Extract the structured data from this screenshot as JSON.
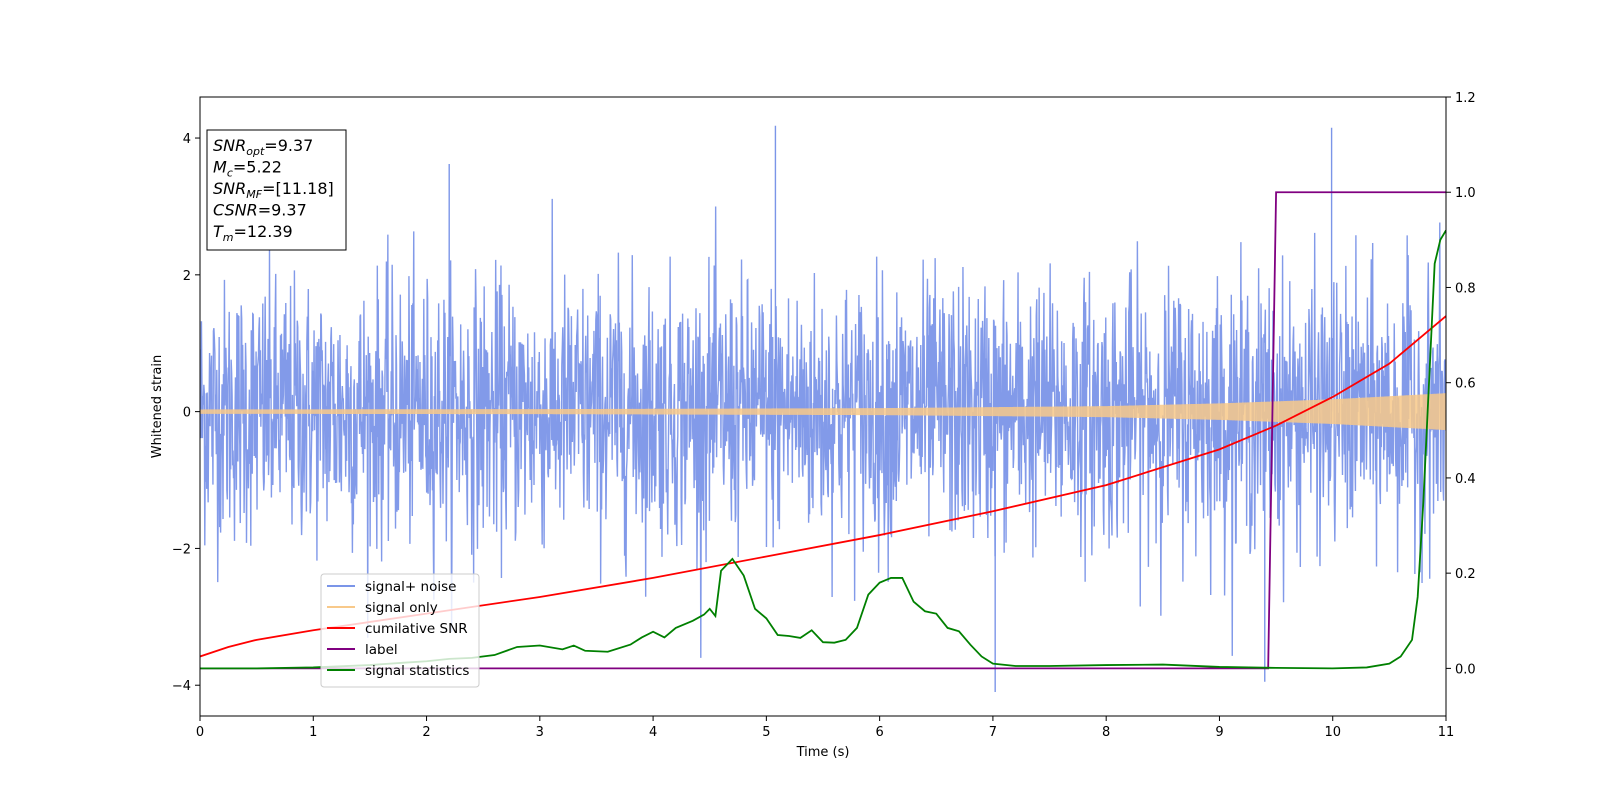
{
  "chart_data": {
    "type": "line",
    "title": "",
    "xlabel": "Time (s)",
    "ylabel": "Whitened strain",
    "xlim": [
      0,
      11
    ],
    "ylim": [
      -4.45,
      4.6
    ],
    "y2lim": [
      -0.1,
      1.2
    ],
    "xticks": [
      0,
      1,
      2,
      3,
      4,
      5,
      6,
      7,
      8,
      9,
      10,
      11
    ],
    "yticks": [
      -4,
      -2,
      0,
      2,
      4
    ],
    "y2ticks": [
      "0.0",
      "0.2",
      "0.4",
      "0.6",
      "0.8",
      "1.0",
      "1.2"
    ],
    "grid": false,
    "legend_position": "lower-left",
    "legend": [
      {
        "label": "signal+ noise",
        "color": "#7b95e8"
      },
      {
        "label": "signal only",
        "color": "#f8c98a"
      },
      {
        "label": "cumilative SNR",
        "color": "#ff0000"
      },
      {
        "label": "label",
        "color": "#800080"
      },
      {
        "label": "signal statistics",
        "color": "#008000"
      }
    ],
    "annotation_box": [
      {
        "name": "SNR",
        "sub": "opt",
        "value": "=9.37"
      },
      {
        "name": "M",
        "sub": "c",
        "value": "=5.22"
      },
      {
        "name": "SNR",
        "sub": "MF",
        "value": "=[11.18]"
      },
      {
        "name": "CSNR",
        "sub": "",
        "value": "=9.37"
      },
      {
        "name": "T",
        "sub": "m",
        "value": "=12.39"
      }
    ],
    "series": [
      {
        "name": "signal+ noise",
        "axis": "left",
        "description_samples_s": 11,
        "envelope_typical": [
          -2.0,
          2.0
        ],
        "extremes": {
          "max": 4.18,
          "min": -4.1
        },
        "color": "#7b95e8"
      },
      {
        "name": "signal only",
        "axis": "left",
        "amplitude_x": [
          0,
          3,
          6,
          8,
          9,
          10,
          11
        ],
        "amplitude_y": [
          0.03,
          0.035,
          0.05,
          0.08,
          0.12,
          0.18,
          0.27
        ],
        "color": "#f8c98a"
      },
      {
        "name": "cumilative SNR",
        "axis": "right",
        "x": [
          0,
          0.25,
          0.5,
          1,
          2,
          3,
          4,
          5,
          6,
          7,
          8,
          9,
          9.5,
          10,
          10.5,
          11
        ],
        "y": [
          0.025,
          0.045,
          0.06,
          0.08,
          0.115,
          0.15,
          0.19,
          0.235,
          0.28,
          0.33,
          0.385,
          0.46,
          0.51,
          0.57,
          0.64,
          0.74
        ],
        "color": "#ff0000"
      },
      {
        "name": "label",
        "axis": "right",
        "x": [
          0,
          9.43,
          9.5,
          11
        ],
        "y": [
          0,
          0,
          1,
          1
        ],
        "color": "#800080"
      },
      {
        "name": "signal statistics",
        "axis": "right",
        "x": [
          0,
          0.5,
          1,
          1.5,
          1.8,
          2.0,
          2.2,
          2.4,
          2.6,
          2.8,
          3.0,
          3.2,
          3.3,
          3.4,
          3.6,
          3.8,
          3.9,
          4.0,
          4.1,
          4.2,
          4.35,
          4.45,
          4.5,
          4.55,
          4.6,
          4.7,
          4.8,
          4.9,
          5.0,
          5.1,
          5.2,
          5.3,
          5.4,
          5.5,
          5.6,
          5.7,
          5.8,
          5.9,
          6.0,
          6.1,
          6.2,
          6.3,
          6.4,
          6.5,
          6.6,
          6.7,
          6.8,
          6.9,
          7.0,
          7.2,
          7.5,
          8.0,
          8.5,
          9.0,
          9.5,
          10.0,
          10.3,
          10.5,
          10.6,
          10.7,
          10.75,
          10.8,
          10.9,
          10.95,
          11.0
        ],
        "y": [
          0.0,
          0.0,
          0.002,
          0.007,
          0.012,
          0.015,
          0.02,
          0.022,
          0.028,
          0.045,
          0.048,
          0.04,
          0.048,
          0.037,
          0.035,
          0.05,
          0.065,
          0.077,
          0.065,
          0.085,
          0.1,
          0.113,
          0.125,
          0.11,
          0.205,
          0.23,
          0.195,
          0.125,
          0.105,
          0.07,
          0.068,
          0.064,
          0.08,
          0.055,
          0.054,
          0.06,
          0.085,
          0.155,
          0.18,
          0.19,
          0.19,
          0.14,
          0.12,
          0.115,
          0.085,
          0.078,
          0.05,
          0.025,
          0.01,
          0.005,
          0.005,
          0.007,
          0.008,
          0.003,
          0.001,
          0.0,
          0.002,
          0.01,
          0.025,
          0.06,
          0.15,
          0.35,
          0.85,
          0.9,
          0.92
        ],
        "color": "#008000"
      }
    ]
  }
}
